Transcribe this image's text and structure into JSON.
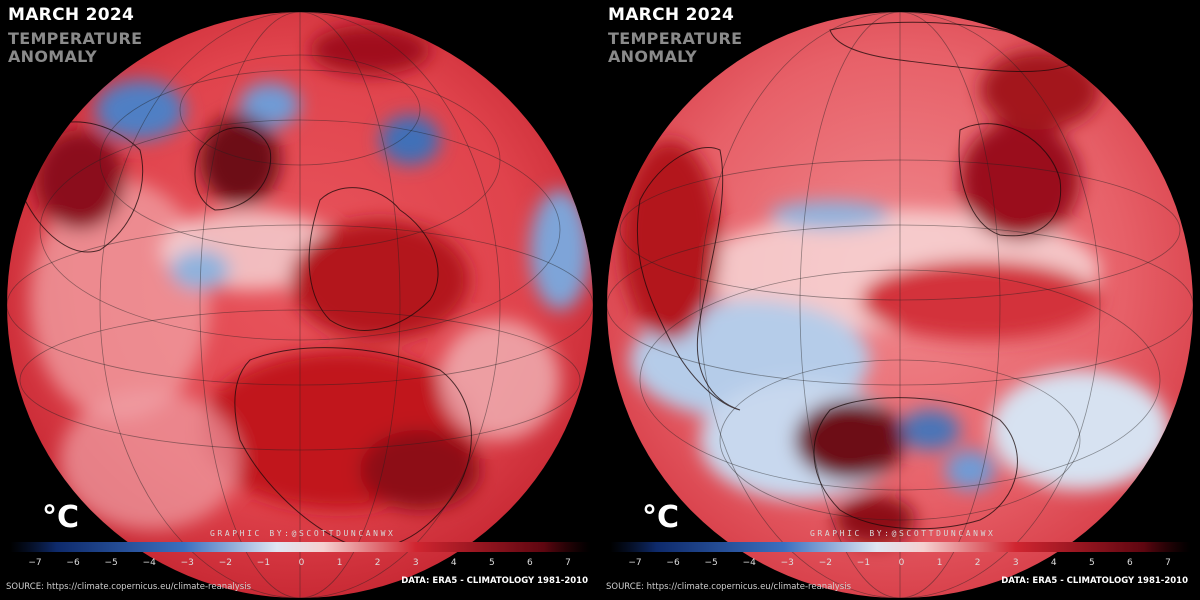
{
  "colors": {
    "background": "#000000",
    "negative": "#1f4fa0",
    "neutral": "#f4f4f4",
    "positive": "#c81e2a",
    "strong_positive": "#5e0610"
  },
  "panels": [
    {
      "title": "MARCH 2024",
      "subtitle_line1": "TEMPERATURE",
      "subtitle_line2": "ANOMALY",
      "unit": "°C",
      "credit": "GRAPHIC BY:@SCOTTDUNCANWX",
      "source": "SOURCE: https://climate.copernicus.eu/climate-reanalysis",
      "data_note": "DATA: ERA5 - CLIMATOLOGY 1981-2010",
      "colorbar_ticks": [
        "−7",
        "−6",
        "−5",
        "−4",
        "−3",
        "−2",
        "−1",
        "0",
        "1",
        "2",
        "3",
        "4",
        "5",
        "6",
        "7"
      ]
    },
    {
      "title": "MARCH 2024",
      "subtitle_line1": "TEMPERATURE",
      "subtitle_line2": "ANOMALY",
      "unit": "°C",
      "credit": "GRAPHIC BY:@SCOTTDUNCANWX",
      "source": "SOURCE: https://climate.copernicus.eu/climate-reanalysis",
      "data_note": "DATA: ERA5 - CLIMATOLOGY 1981-2010",
      "colorbar_ticks": [
        "−7",
        "−6",
        "−5",
        "−4",
        "−3",
        "−2",
        "−1",
        "0",
        "1",
        "2",
        "3",
        "4",
        "5",
        "6",
        "7"
      ]
    }
  ]
}
